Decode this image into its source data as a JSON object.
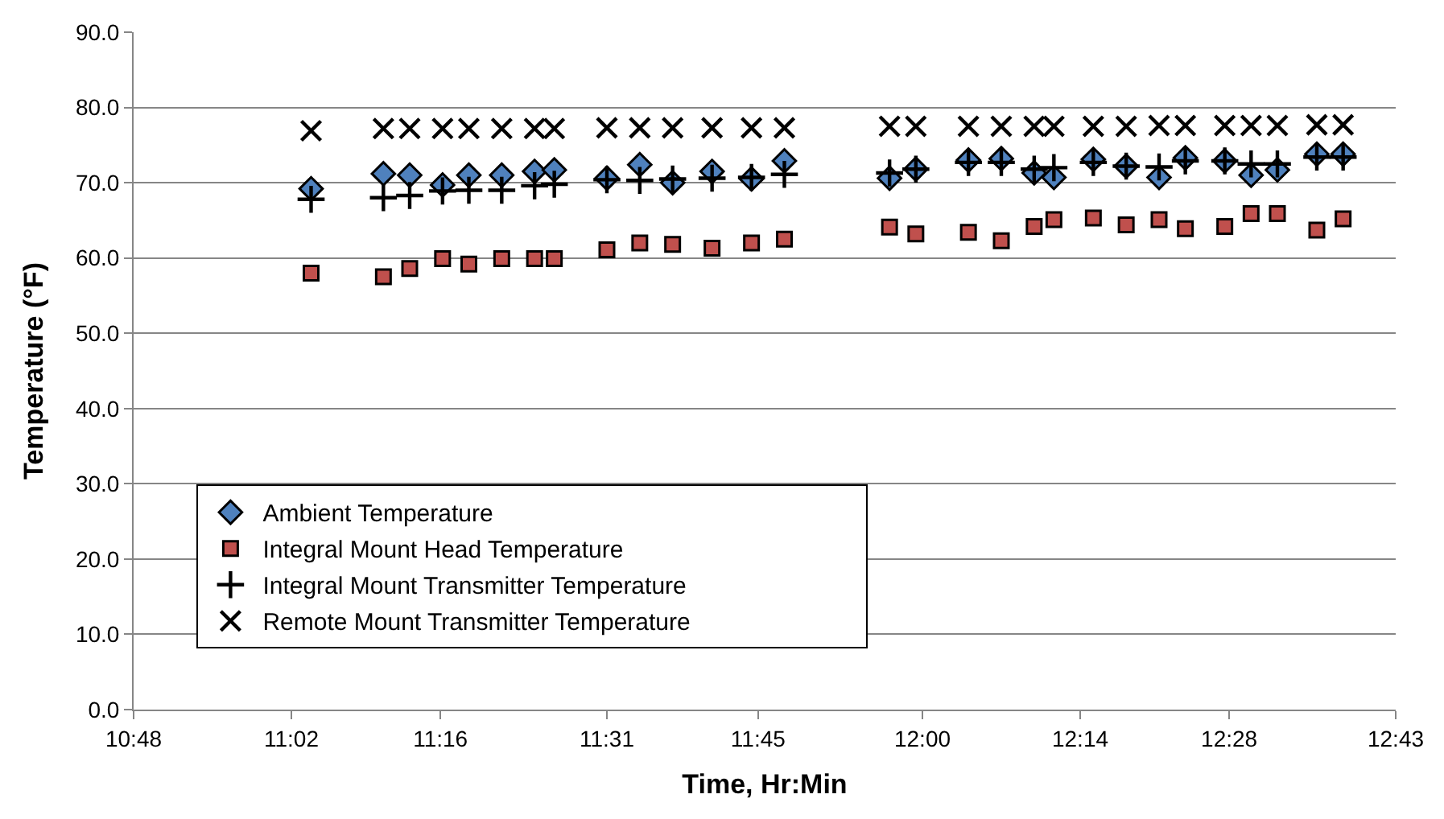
{
  "chart_data": {
    "type": "scatter",
    "xlabel": "Time, Hr:Min",
    "ylabel": "Temperature (°F)",
    "x": [
      11.07,
      11.18,
      11.22,
      11.27,
      11.31,
      11.36,
      11.41,
      11.44,
      11.52,
      11.57,
      11.62,
      11.68,
      11.74,
      11.79,
      11.95,
      11.99,
      12.07,
      12.12,
      12.17,
      12.2,
      12.26,
      12.31,
      12.36,
      12.4,
      12.46,
      12.5,
      12.54,
      12.6,
      12.64
    ],
    "series": [
      {
        "name": "Ambient Temperature",
        "color": "#4f81bd",
        "marker": "diamond",
        "values": [
          69.2,
          71.2,
          71.0,
          69.7,
          71.0,
          71.0,
          71.5,
          71.7,
          70.6,
          72.4,
          70.0,
          71.5,
          70.5,
          72.9,
          70.6,
          71.8,
          73.0,
          73.2,
          71.3,
          70.7,
          73.1,
          72.2,
          70.7,
          73.3,
          72.9,
          71.0,
          71.7,
          73.8,
          73.8
        ]
      },
      {
        "name": "Integral Mount Head Temperature",
        "color": "#c0504d",
        "marker": "square",
        "values": [
          58.0,
          57.5,
          58.6,
          59.9,
          59.2,
          59.9,
          59.9,
          59.9,
          61.1,
          62.0,
          61.8,
          61.3,
          62.0,
          62.5,
          64.1,
          63.2,
          63.4,
          62.3,
          64.2,
          65.1,
          65.3,
          64.4,
          65.1,
          63.9,
          64.2,
          65.9,
          65.9,
          63.7,
          65.2
        ]
      },
      {
        "name": "Integral Mount Transmitter Temperature",
        "color": "#000000",
        "marker": "cross",
        "values": [
          67.8,
          68.0,
          68.3,
          68.9,
          69.0,
          69.0,
          69.6,
          69.8,
          70.4,
          70.3,
          70.5,
          70.6,
          70.7,
          71.1,
          71.3,
          71.8,
          72.7,
          72.7,
          71.8,
          72.0,
          72.7,
          72.2,
          72.1,
          72.9,
          72.9,
          72.5,
          72.5,
          73.4,
          73.4
        ]
      },
      {
        "name": "Remote Mount Transmitter Temperature",
        "color": "#000000",
        "marker": "x",
        "values": [
          76.9,
          77.2,
          77.2,
          77.2,
          77.2,
          77.2,
          77.2,
          77.2,
          77.3,
          77.3,
          77.3,
          77.3,
          77.3,
          77.3,
          77.5,
          77.5,
          77.5,
          77.5,
          77.5,
          77.5,
          77.5,
          77.5,
          77.6,
          77.6,
          77.6,
          77.6,
          77.6,
          77.7,
          77.7
        ]
      }
    ],
    "xlim": [
      10.8,
      12.72
    ],
    "xticks": [
      {
        "value": 10.8,
        "label": "10:48"
      },
      {
        "value": 11.04,
        "label": "11:02"
      },
      {
        "value": 11.2667,
        "label": "11:16"
      },
      {
        "value": 11.52,
        "label": "11:31"
      },
      {
        "value": 11.75,
        "label": "11:45"
      },
      {
        "value": 12.0,
        "label": "12:00"
      },
      {
        "value": 12.24,
        "label": "12:14"
      },
      {
        "value": 12.4667,
        "label": "12:28"
      },
      {
        "value": 12.72,
        "label": "12:43"
      }
    ],
    "ylim": [
      0,
      90
    ],
    "yticks": [
      {
        "value": 0,
        "label": "0.0"
      },
      {
        "value": 10,
        "label": "10.0"
      },
      {
        "value": 20,
        "label": "20.0"
      },
      {
        "value": 30,
        "label": "30.0"
      },
      {
        "value": 40,
        "label": "40.0"
      },
      {
        "value": 50,
        "label": "50.0"
      },
      {
        "value": 60,
        "label": "60.0"
      },
      {
        "value": 70,
        "label": "70.0"
      },
      {
        "value": 80,
        "label": "80.0"
      },
      {
        "value": 90,
        "label": "90.0"
      }
    ],
    "grid": "y",
    "legend": "bottom"
  }
}
